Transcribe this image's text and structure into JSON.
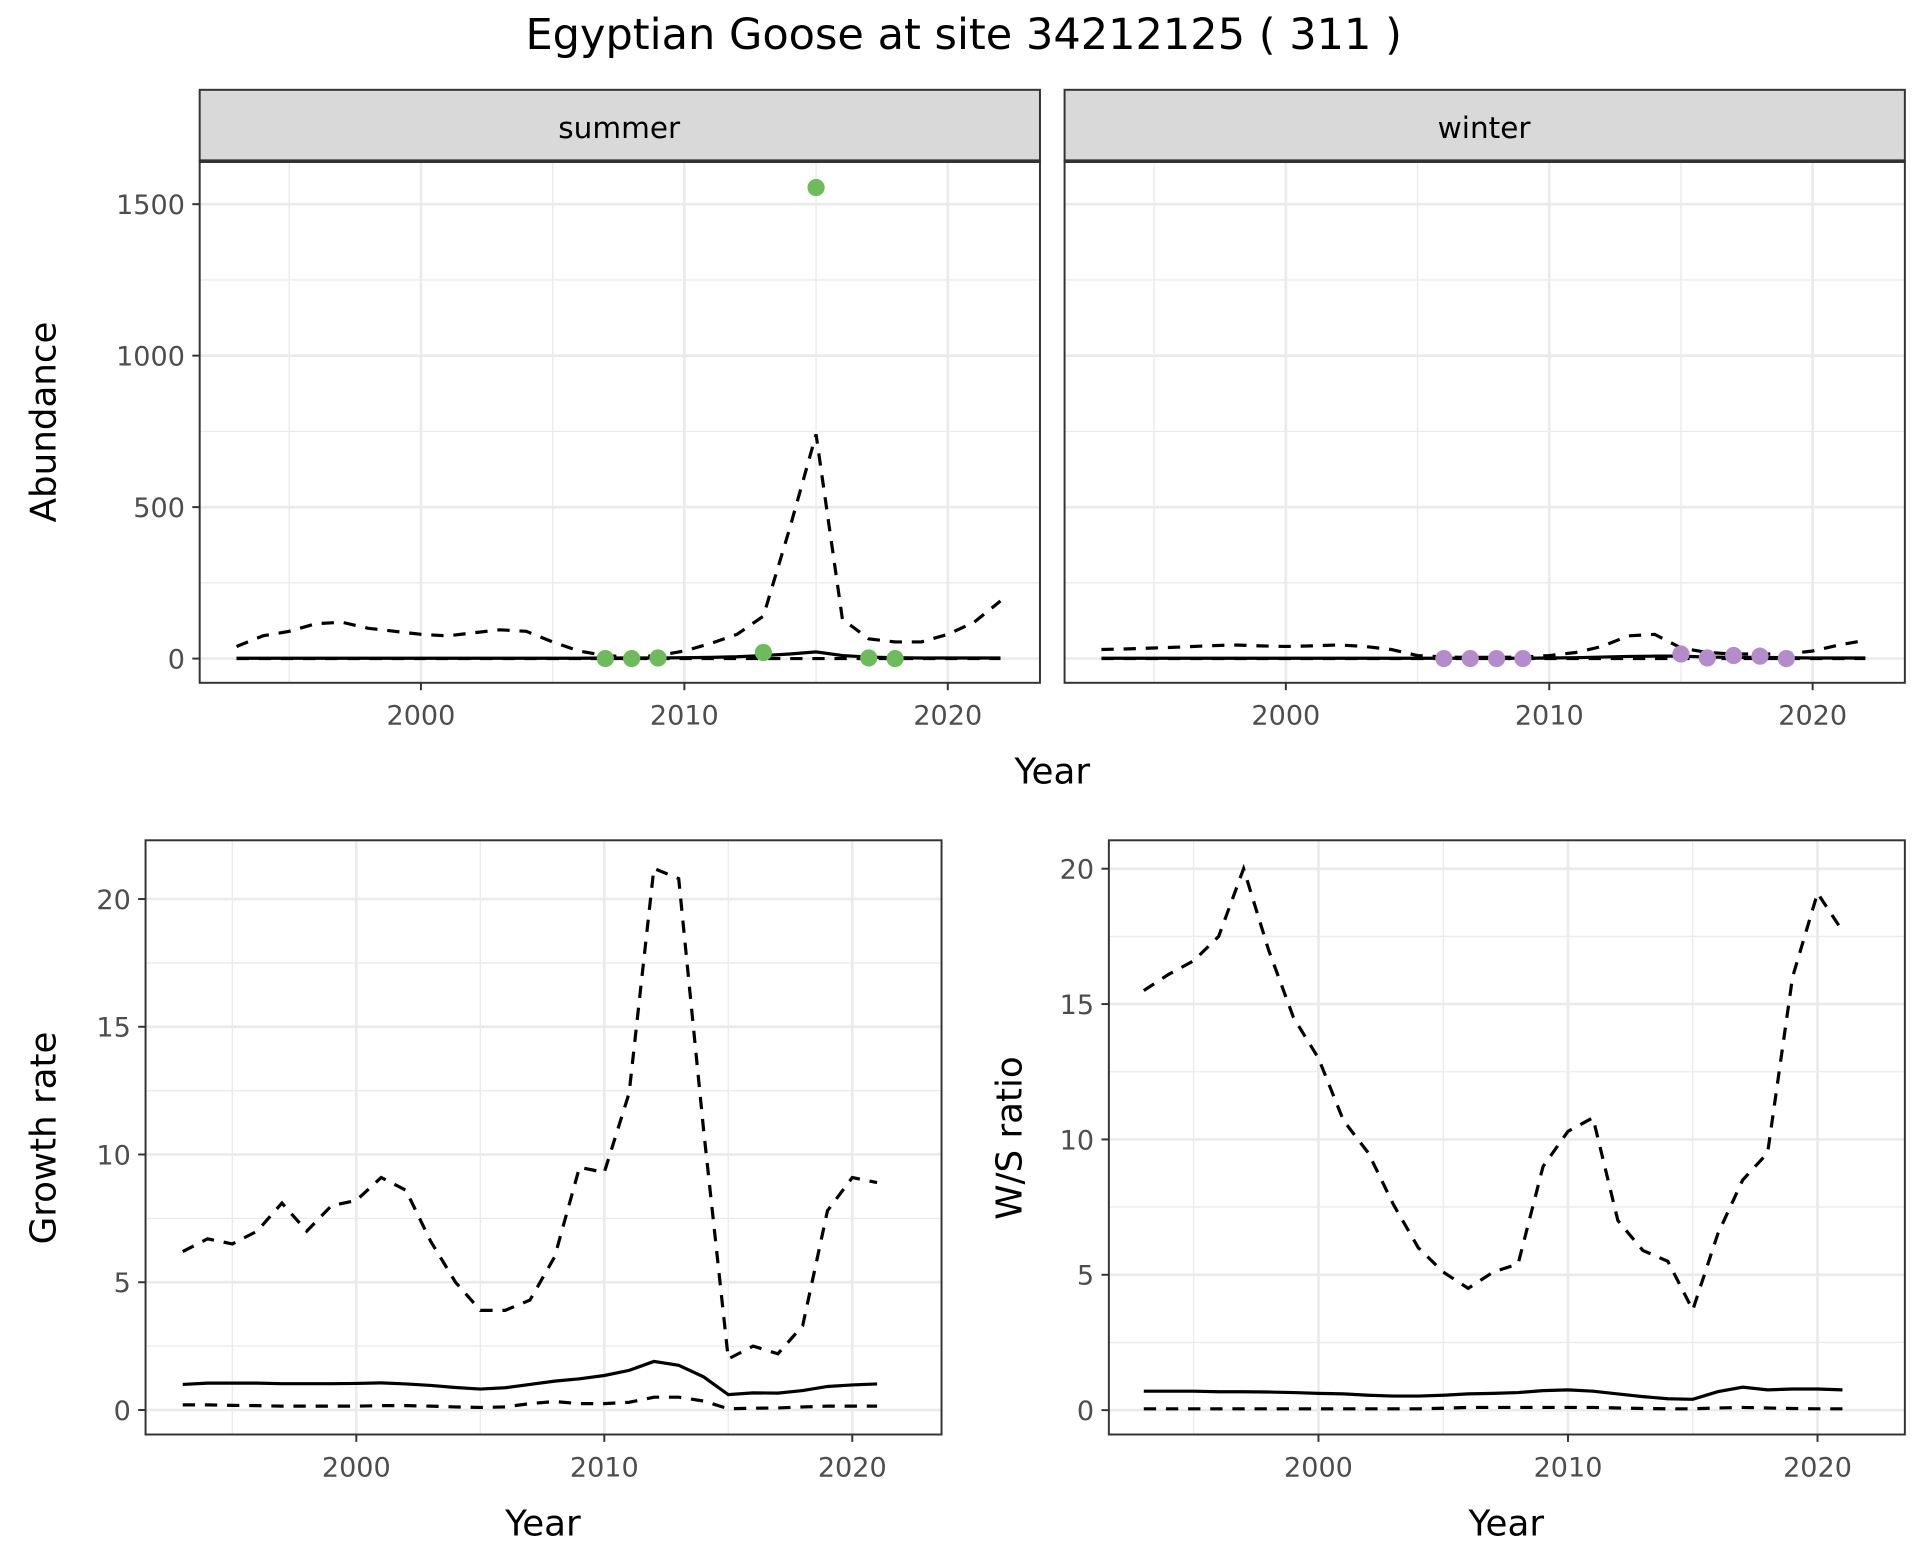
{
  "title": "Egyptian Goose at site 34212125 ( 311 )",
  "colors": {
    "summer": "#6dbb5a",
    "winter": "#b48ccb",
    "line": "#000000",
    "strip": "#d9d9d9",
    "grid": "#ebebeb"
  },
  "chart_data": [
    {
      "type": "line",
      "name": "abundance",
      "facets": [
        "summer",
        "winter"
      ],
      "xlabel": "Year",
      "ylabel": "Abundance",
      "xlim": [
        1991.6,
        2023.5
      ],
      "ylim": [
        -80,
        1642
      ],
      "xticks": [
        2000,
        2010,
        2020
      ],
      "yticks": [
        0,
        500,
        1000,
        1500
      ],
      "x": [
        1993,
        1994,
        1995,
        1996,
        1997,
        1998,
        1999,
        2000,
        2001,
        2002,
        2003,
        2004,
        2005,
        2006,
        2007,
        2008,
        2009,
        2010,
        2011,
        2012,
        2013,
        2014,
        2015,
        2016,
        2017,
        2018,
        2019,
        2020,
        2021,
        2022
      ],
      "series": {
        "summer": {
          "upper": [
            40,
            75,
            90,
            115,
            120,
            100,
            90,
            80,
            75,
            85,
            95,
            90,
            55,
            25,
            10,
            5,
            10,
            25,
            50,
            80,
            140,
            430,
            740,
            130,
            65,
            55,
            55,
            80,
            120,
            190
          ],
          "mean": [
            1,
            1,
            1,
            1,
            1,
            1,
            1,
            1,
            1,
            1,
            1,
            1,
            1,
            1,
            2,
            2,
            2,
            3,
            4,
            6,
            10,
            15,
            22,
            10,
            5,
            3,
            2,
            2,
            2,
            2
          ],
          "lower": [
            0,
            0,
            0,
            0,
            0,
            0,
            0,
            0,
            0,
            0,
            0,
            0,
            0,
            0,
            0,
            0,
            0,
            0,
            0,
            0,
            0,
            0,
            0,
            0,
            0,
            0,
            0,
            0,
            0,
            0
          ],
          "points": {
            "x": [
              2007,
              2008,
              2009,
              2013,
              2015,
              2017,
              2018
            ],
            "y": [
              0,
              0,
              2,
              20,
              1555,
              2,
              0
            ]
          }
        },
        "winter": {
          "upper": [
            30,
            32,
            35,
            38,
            42,
            45,
            42,
            40,
            42,
            45,
            40,
            30,
            10,
            5,
            4,
            4,
            5,
            10,
            20,
            40,
            75,
            80,
            35,
            20,
            15,
            15,
            15,
            25,
            45,
            60
          ],
          "mean": [
            1,
            1,
            1,
            1,
            1,
            1,
            1,
            1,
            1,
            1,
            1,
            1,
            1,
            1,
            1,
            1,
            1,
            2,
            3,
            5,
            7,
            8,
            8,
            5,
            4,
            4,
            3,
            2,
            2,
            2
          ],
          "lower": [
            0,
            0,
            0,
            0,
            0,
            0,
            0,
            0,
            0,
            0,
            0,
            0,
            0,
            0,
            0,
            0,
            0,
            0,
            0,
            0,
            0,
            0,
            0,
            0,
            0,
            0,
            0,
            0,
            0,
            0
          ],
          "points": {
            "x": [
              2006,
              2007,
              2008,
              2009,
              2015,
              2016,
              2017,
              2018,
              2019
            ],
            "y": [
              0,
              0,
              0,
              0,
              15,
              2,
              10,
              8,
              0
            ]
          }
        }
      }
    },
    {
      "type": "line",
      "name": "growth-rate",
      "xlabel": "Year",
      "ylabel": "Growth rate",
      "xlim": [
        1991.5,
        2023.6
      ],
      "ylim": [
        -0.96,
        22.3
      ],
      "xticks": [
        2000,
        2010,
        2020
      ],
      "yticks": [
        0,
        5,
        10,
        15,
        20
      ],
      "x": [
        1993,
        1994,
        1995,
        1996,
        1997,
        1998,
        1999,
        2000,
        2001,
        2002,
        2003,
        2004,
        2005,
        2006,
        2007,
        2008,
        2009,
        2010,
        2011,
        2012,
        2013,
        2014,
        2015,
        2016,
        2017,
        2018,
        2019,
        2020,
        2021
      ],
      "series": {
        "upper": [
          6.2,
          6.7,
          6.5,
          7.0,
          8.1,
          7.0,
          8.0,
          8.2,
          9.1,
          8.6,
          6.6,
          5.0,
          3.9,
          3.9,
          4.3,
          6.0,
          9.5,
          9.3,
          12.4,
          21.2,
          20.8,
          11.0,
          2.0,
          2.5,
          2.2,
          3.3,
          7.8,
          9.1,
          8.9
        ],
        "mean": [
          1.0,
          1.05,
          1.05,
          1.05,
          1.03,
          1.03,
          1.03,
          1.04,
          1.06,
          1.02,
          0.96,
          0.88,
          0.82,
          0.87,
          1.0,
          1.13,
          1.22,
          1.35,
          1.55,
          1.9,
          1.75,
          1.3,
          0.6,
          0.67,
          0.66,
          0.76,
          0.92,
          0.98,
          1.02
        ],
        "lower": [
          0.2,
          0.2,
          0.18,
          0.17,
          0.15,
          0.15,
          0.15,
          0.15,
          0.17,
          0.17,
          0.15,
          0.12,
          0.1,
          0.12,
          0.25,
          0.33,
          0.25,
          0.25,
          0.3,
          0.5,
          0.5,
          0.35,
          0.05,
          0.07,
          0.08,
          0.12,
          0.15,
          0.15,
          0.15
        ]
      }
    },
    {
      "type": "line",
      "name": "ws-ratio",
      "xlabel": "Year",
      "ylabel": "W/S ratio",
      "xlim": [
        1991.6,
        2023.5
      ],
      "ylim": [
        -0.9,
        21.05
      ],
      "xticks": [
        2000,
        2010,
        2020
      ],
      "yticks": [
        0,
        5,
        10,
        15,
        20
      ],
      "x": [
        1993,
        1994,
        1995,
        1996,
        1997,
        1998,
        1999,
        2000,
        2001,
        2002,
        2003,
        2004,
        2005,
        2006,
        2007,
        2008,
        2009,
        2010,
        2011,
        2012,
        2013,
        2014,
        2015,
        2016,
        2017,
        2018,
        2019,
        2020,
        2021
      ],
      "series": {
        "upper": [
          15.5,
          16.1,
          16.6,
          17.5,
          20.0,
          17.0,
          14.5,
          13.0,
          10.7,
          9.5,
          7.6,
          6.0,
          5.1,
          4.5,
          5.1,
          5.4,
          9.0,
          10.3,
          10.8,
          7.0,
          5.9,
          5.5,
          3.7,
          6.5,
          8.5,
          9.5,
          16.0,
          19.1,
          17.7
        ],
        "mean": [
          0.7,
          0.7,
          0.7,
          0.68,
          0.68,
          0.67,
          0.65,
          0.62,
          0.6,
          0.55,
          0.52,
          0.52,
          0.55,
          0.6,
          0.62,
          0.65,
          0.72,
          0.75,
          0.7,
          0.6,
          0.5,
          0.42,
          0.4,
          0.68,
          0.85,
          0.75,
          0.78,
          0.78,
          0.75
        ],
        "lower": [
          0.05,
          0.05,
          0.05,
          0.05,
          0.05,
          0.05,
          0.05,
          0.05,
          0.05,
          0.05,
          0.05,
          0.05,
          0.07,
          0.1,
          0.1,
          0.1,
          0.1,
          0.1,
          0.1,
          0.08,
          0.06,
          0.05,
          0.05,
          0.08,
          0.1,
          0.08,
          0.06,
          0.05,
          0.05
        ]
      }
    }
  ]
}
